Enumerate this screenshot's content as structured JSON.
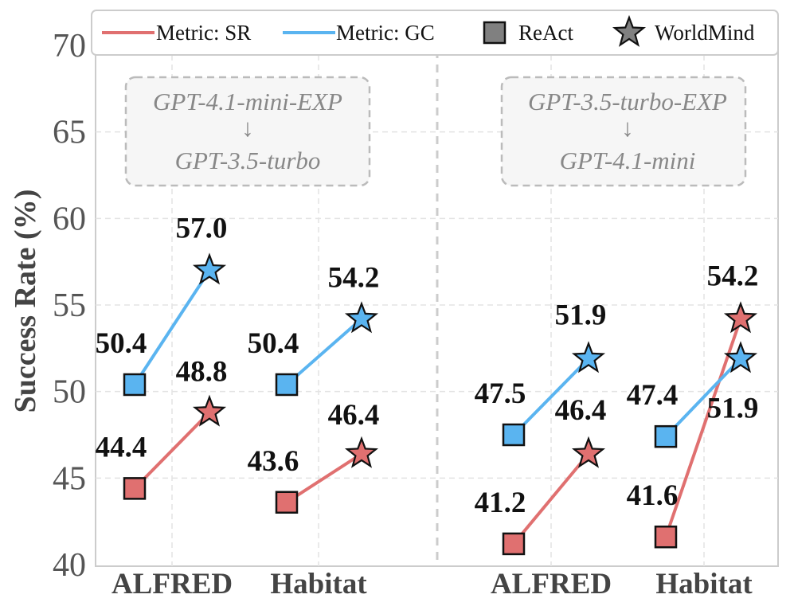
{
  "chart_data": {
    "type": "line",
    "ylabel": "Success Rate (%)",
    "ylim": [
      40,
      70
    ],
    "yticks": [
      40,
      45,
      50,
      55,
      60,
      65,
      70
    ],
    "grid": true,
    "legend": {
      "position": "top",
      "entries": [
        {
          "label": "Metric: SR",
          "kind": "line",
          "color": "#e07070"
        },
        {
          "label": "Metric: GC",
          "kind": "line",
          "color": "#5ab4f0"
        },
        {
          "label": "ReAct",
          "kind": "square",
          "color": "#808080"
        },
        {
          "label": "WorldMind",
          "kind": "star",
          "color": "#808080"
        }
      ]
    },
    "panels": [
      {
        "annotation": {
          "from": "GPT-4.1-mini-EXP",
          "arrow": "↓",
          "to": "GPT-3.5-turbo"
        },
        "categories": [
          "ALFRED",
          "Habitat"
        ],
        "series": [
          {
            "name": "Metric: SR",
            "color": "#e07070",
            "react": [
              44.4,
              43.6
            ],
            "worldmind": [
              48.8,
              46.4
            ]
          },
          {
            "name": "Metric: GC",
            "color": "#5ab4f0",
            "react": [
              50.4,
              50.4
            ],
            "worldmind": [
              57.0,
              54.2
            ]
          }
        ]
      },
      {
        "annotation": {
          "from": "GPT-3.5-turbo-EXP",
          "arrow": "↓",
          "to": "GPT-4.1-mini"
        },
        "categories": [
          "ALFRED",
          "Habitat"
        ],
        "series": [
          {
            "name": "Metric: SR",
            "color": "#e07070",
            "react": [
              41.2,
              41.6
            ],
            "worldmind": [
              46.4,
              54.2
            ]
          },
          {
            "name": "Metric: GC",
            "color": "#5ab4f0",
            "react": [
              47.5,
              47.4
            ],
            "worldmind": [
              51.9,
              51.9
            ]
          }
        ]
      }
    ]
  }
}
